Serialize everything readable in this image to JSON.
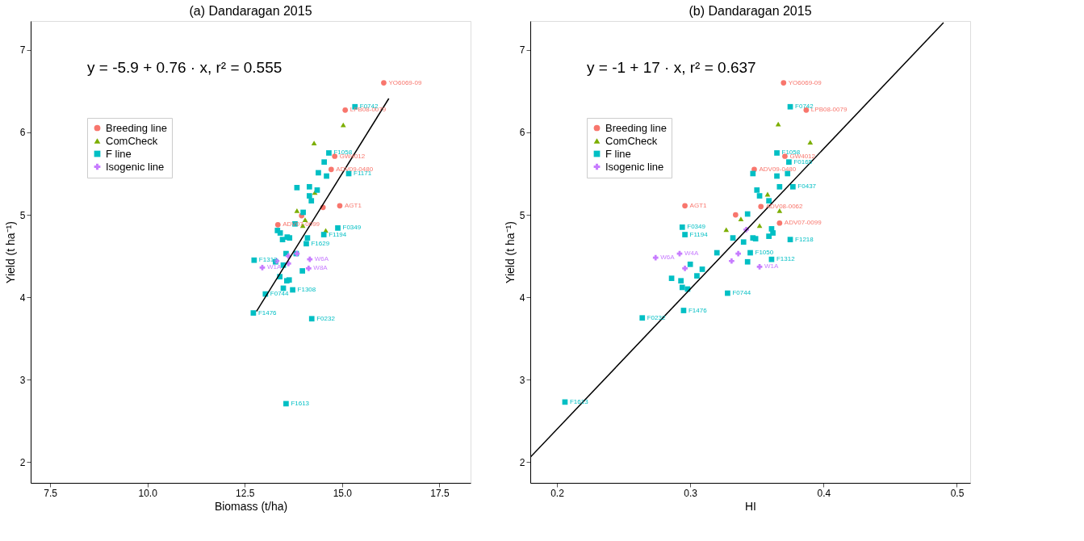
{
  "chart_data": [
    {
      "type": "scatter",
      "title": "(a) Dandaragan 2015",
      "xlabel": "Biomass (t/ha)",
      "ylabel": "Yield (t ha⁻¹)",
      "annotations": [
        "y = -5.9 + 0.76 · x,  r² = 0.555"
      ],
      "xlim": [
        7.0,
        18.3
      ],
      "ylim": [
        1.75,
        7.35
      ],
      "xticks": [
        7.5,
        {
          "value": 10,
          "label": "10.0"
        },
        12.5,
        {
          "value": 15,
          "label": "15.0"
        },
        17.5
      ],
      "yticks": [
        2,
        3,
        4,
        5,
        6,
        7
      ],
      "grid": false,
      "legend": "top left",
      "series": [
        {
          "name": "Breeding line",
          "color": "#f8766d",
          "marker": "circle",
          "x": [
            16.07,
            15.08,
            14.81,
            14.72,
            14.51,
            14.94,
            13.96,
            13.35
          ],
          "values": [
            6.6,
            6.27,
            5.71,
            5.55,
            5.09,
            5.11,
            4.99,
            4.88
          ],
          "value_labels": [
            "YO6069-09",
            "LPB08-0079",
            "GW4012",
            "ADV09-0480",
            null,
            "AGT1",
            null,
            "ADV07-0099"
          ]
        },
        {
          "name": "ComCheck",
          "color": "#7cae00",
          "marker": "triangle",
          "x": [
            15.03,
            14.28,
            14.3,
            13.84,
            14.05,
            13.99,
            14.58
          ],
          "values": [
            6.09,
            5.87,
            5.27,
            5.05,
            4.94,
            4.87,
            4.81
          ],
          "value_labels": [
            null,
            null,
            null,
            null,
            null,
            null,
            null
          ]
        },
        {
          "name": "F line",
          "color": "#00bfc4",
          "marker": "square",
          "x": [
            15.33,
            14.66,
            14.54,
            14.39,
            14.6,
            15.17,
            13.84,
            14.16,
            14.36,
            14.16,
            14.21,
            14.0,
            14.89,
            14.53,
            14.11,
            14.08,
            13.79,
            13.34,
            13.41,
            13.47,
            13.59,
            13.65,
            13.56,
            13.82,
            12.74,
            13.29,
            13.49,
            13.98,
            13.4,
            13.64,
            13.58,
            13.49,
            13.73,
            13.03,
            12.72,
            14.22,
            13.56
          ],
          "values": [
            6.31,
            5.75,
            5.64,
            5.51,
            5.47,
            5.5,
            5.33,
            5.34,
            5.3,
            5.23,
            5.17,
            5.03,
            4.84,
            4.76,
            4.72,
            4.65,
            4.89,
            4.81,
            4.78,
            4.7,
            4.73,
            4.72,
            4.53,
            4.53,
            4.45,
            4.43,
            4.39,
            4.32,
            4.25,
            4.21,
            4.2,
            4.11,
            4.09,
            4.04,
            3.81,
            3.74,
            2.71
          ],
          "value_labels": [
            "F0742",
            "F1058",
            null,
            null,
            null,
            "F1171",
            null,
            null,
            null,
            null,
            null,
            null,
            "F0349",
            "F1194",
            null,
            "F1629",
            null,
            null,
            null,
            null,
            null,
            null,
            null,
            null,
            "F1312",
            null,
            null,
            null,
            null,
            null,
            null,
            null,
            "F1308",
            "F0744",
            "F1476",
            "F0232",
            "F1613"
          ]
        },
        {
          "name": "Isogenic line",
          "color": "#c77cff",
          "marker": "cross",
          "x": [
            14.17,
            13.62,
            13.84,
            12.95,
            14.14,
            13.32,
            13.62
          ],
          "values": [
            4.46,
            4.5,
            4.53,
            4.36,
            4.35,
            4.44,
            4.41
          ],
          "value_labels": [
            "W6A",
            null,
            null,
            "W1A",
            "W8A",
            null,
            null
          ]
        },
        {
          "type": "line",
          "color": "#000000",
          "x": [
            12.8,
            16.2
          ],
          "values": [
            3.83,
            6.41
          ]
        }
      ]
    },
    {
      "type": "scatter",
      "title": "(b) Dandaragan 2015",
      "xlabel": "HI",
      "ylabel": "Yield (t ha⁻¹)",
      "annotations": [
        "y = -1 + 17 · x,  r² = 0.637"
      ],
      "xlim": [
        0.18,
        0.51
      ],
      "ylim": [
        1.75,
        7.35
      ],
      "xticks": [
        0.2,
        0.3,
        0.4,
        0.5
      ],
      "yticks": [
        2,
        3,
        4,
        5,
        6,
        7
      ],
      "grid": false,
      "legend": "top left",
      "series": [
        {
          "name": "Breeding line",
          "color": "#f8766d",
          "marker": "circle",
          "x": [
            0.37,
            0.387,
            0.371,
            0.348,
            0.296,
            0.353,
            0.334,
            0.367
          ],
          "values": [
            6.6,
            6.27,
            5.71,
            5.55,
            5.11,
            5.1,
            5.0,
            4.9
          ],
          "value_labels": [
            "YO6069-09",
            "LPB08-0079",
            "GW4012",
            "ADV09-0480",
            "AGT1",
            "ADV08-0062",
            null,
            "ADV07-0099"
          ]
        },
        {
          "name": "ComCheck",
          "color": "#7cae00",
          "marker": "triangle",
          "x": [
            0.366,
            0.39,
            0.358,
            0.367,
            0.338,
            0.327,
            0.352
          ],
          "values": [
            6.1,
            5.88,
            5.25,
            5.05,
            4.95,
            4.82,
            4.87
          ],
          "value_labels": [
            null,
            null,
            null,
            null,
            null,
            null,
            null
          ]
        },
        {
          "name": "F line",
          "color": "#00bfc4",
          "marker": "square",
          "x": [
            0.375,
            0.365,
            0.374,
            0.365,
            0.373,
            0.347,
            0.377,
            0.367,
            0.35,
            0.352,
            0.359,
            0.343,
            0.294,
            0.296,
            0.332,
            0.34,
            0.361,
            0.362,
            0.359,
            0.347,
            0.349,
            0.375,
            0.345,
            0.32,
            0.361,
            0.343,
            0.3,
            0.309,
            0.305,
            0.293,
            0.286,
            0.294,
            0.298,
            0.328,
            0.295,
            0.264,
            0.206
          ],
          "values": [
            6.31,
            5.75,
            5.64,
            5.47,
            5.5,
            5.5,
            5.34,
            5.34,
            5.3,
            5.23,
            5.17,
            5.01,
            4.85,
            4.76,
            4.72,
            4.67,
            4.83,
            4.78,
            4.74,
            4.72,
            4.71,
            4.7,
            4.54,
            4.54,
            4.46,
            4.43,
            4.4,
            4.34,
            4.26,
            4.2,
            4.23,
            4.12,
            4.1,
            4.05,
            3.84,
            3.75,
            2.73
          ],
          "value_labels": [
            "F0742",
            "F1058",
            "F0165",
            null,
            null,
            null,
            "F0437",
            null,
            null,
            null,
            null,
            null,
            "F0349",
            "F1194",
            null,
            null,
            null,
            null,
            null,
            null,
            null,
            "F1218",
            "F1050",
            null,
            "F1312",
            null,
            null,
            null,
            null,
            null,
            null,
            null,
            null,
            "F0744",
            "F1476",
            "F0232",
            "F1613"
          ]
        },
        {
          "name": "Isogenic line",
          "color": "#c77cff",
          "marker": "cross",
          "x": [
            0.274,
            0.292,
            0.336,
            0.342,
            0.296,
            0.352,
            0.331
          ],
          "values": [
            4.48,
            4.53,
            4.53,
            4.82,
            4.35,
            4.37,
            4.44
          ],
          "value_labels": [
            "W6A",
            "W4A",
            null,
            null,
            null,
            "W1A",
            null
          ]
        },
        {
          "type": "line",
          "color": "#000000",
          "x": [
            0.18,
            0.49
          ],
          "values": [
            2.06,
            7.33
          ]
        }
      ]
    }
  ]
}
